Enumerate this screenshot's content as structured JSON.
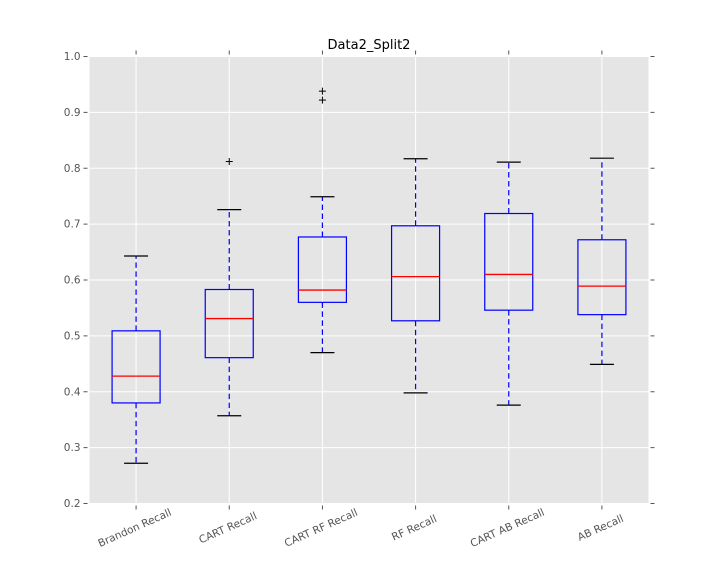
{
  "chart_data": {
    "type": "boxplot",
    "title": "Data2_Split2",
    "categories": [
      "Brandon Recall",
      "CART Recall",
      "CART RF Recall",
      "RF Recall",
      "CART AB Recall",
      "AB Recall"
    ],
    "boxes": [
      {
        "label": "Brandon Recall",
        "whisker_low": 0.272,
        "q1": 0.38,
        "median": 0.428,
        "q3": 0.509,
        "whisker_high": 0.643,
        "outliers": []
      },
      {
        "label": "CART Recall",
        "whisker_low": 0.357,
        "q1": 0.461,
        "median": 0.531,
        "q3": 0.583,
        "whisker_high": 0.726,
        "outliers": [
          0.812
        ]
      },
      {
        "label": "CART RF Recall",
        "whisker_low": 0.47,
        "q1": 0.56,
        "median": 0.582,
        "q3": 0.677,
        "whisker_high": 0.749,
        "outliers": [
          0.922,
          0.938
        ]
      },
      {
        "label": "RF Recall",
        "whisker_low": 0.398,
        "q1": 0.527,
        "median": 0.606,
        "q3": 0.697,
        "whisker_high": 0.817,
        "outliers": []
      },
      {
        "label": "CART AB Recall",
        "whisker_low": 0.376,
        "q1": 0.546,
        "median": 0.61,
        "q3": 0.719,
        "whisker_high": 0.811,
        "outliers": []
      },
      {
        "label": "AB Recall",
        "whisker_low": 0.449,
        "q1": 0.538,
        "median": 0.589,
        "q3": 0.672,
        "whisker_high": 0.818,
        "outliers": []
      }
    ],
    "ylim": [
      0.2,
      1.0
    ],
    "yticks": [
      0.2,
      0.3,
      0.4,
      0.5,
      0.6,
      0.7,
      0.8,
      0.9,
      1.0
    ],
    "ytick_labels": [
      "0.2",
      "0.3",
      "0.4",
      "0.5",
      "0.6",
      "0.7",
      "0.8",
      "0.9",
      "1.0"
    ],
    "xlabel": "",
    "ylabel": "",
    "grid": true,
    "legend": "none",
    "xtick_rotation_deg": 24,
    "colors": {
      "figure_bg": "#ffffff",
      "plot_bg": "#e5e5e5",
      "grid": "#ffffff",
      "box": "#0000ff",
      "median": "#ff0000",
      "whisker": "#0000ff",
      "cap": "#000000",
      "outlier": "#000000",
      "tick": "#555555",
      "tick_label": "#555555",
      "title": "#000000"
    }
  }
}
